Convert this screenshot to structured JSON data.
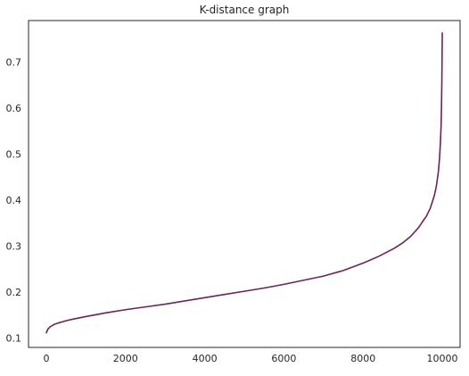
{
  "chart_data": {
    "type": "line",
    "title": "K-distance graph",
    "xlabel": "",
    "ylabel": "",
    "xlim": [
      -450,
      10450
    ],
    "ylim": [
      0.08,
      0.79
    ],
    "x_ticks": [
      0,
      2000,
      4000,
      6000,
      8000,
      10000
    ],
    "x_tick_labels": [
      "0",
      "2000",
      "4000",
      "6000",
      "8000",
      "10000"
    ],
    "y_ticks": [
      0.1,
      0.2,
      0.3,
      0.4,
      0.5,
      0.6,
      0.7
    ],
    "y_tick_labels": [
      "0.1",
      "0.2",
      "0.3",
      "0.4",
      "0.5",
      "0.6",
      "0.7"
    ],
    "grid": false,
    "legend": "none",
    "line_color": "#6b2455",
    "series": [
      {
        "x": [
          0,
          40,
          100,
          200,
          300,
          500,
          700,
          1000,
          1500,
          2000,
          2500,
          3000,
          3500,
          4000,
          4500,
          5000,
          5500,
          6000,
          6500,
          7000,
          7500,
          8000,
          8400,
          8800,
          9000,
          9200,
          9400,
          9500,
          9600,
          9700,
          9800,
          9850,
          9900,
          9930,
          9950,
          9970,
          9980,
          9990,
          9995,
          10000
        ],
        "y": [
          0.112,
          0.12,
          0.125,
          0.13,
          0.133,
          0.138,
          0.142,
          0.147,
          0.155,
          0.162,
          0.168,
          0.174,
          0.181,
          0.188,
          0.195,
          0.202,
          0.209,
          0.217,
          0.226,
          0.235,
          0.247,
          0.263,
          0.278,
          0.296,
          0.307,
          0.321,
          0.34,
          0.353,
          0.365,
          0.383,
          0.41,
          0.43,
          0.46,
          0.49,
          0.52,
          0.56,
          0.6,
          0.66,
          0.71,
          0.763
        ]
      }
    ]
  }
}
